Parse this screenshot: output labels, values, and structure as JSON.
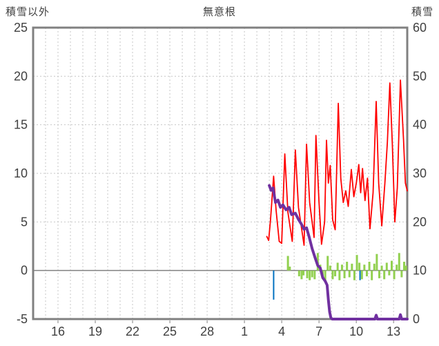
{
  "header": {
    "left_axis_title": "積雪以外",
    "chart_title": "無意根",
    "right_axis_title": "積雪"
  },
  "chart_data": {
    "type": "line",
    "title": "無意根",
    "left_axis": {
      "title": "積雪以外",
      "min": -5,
      "max": 25,
      "ticks": [
        25,
        20,
        15,
        10,
        5,
        0,
        -5
      ]
    },
    "right_axis": {
      "title": "積雪",
      "min": 0,
      "max": 60,
      "ticks": [
        60,
        50,
        40,
        30,
        20,
        10,
        0
      ]
    },
    "x_axis": {
      "tick_labels": [
        "16",
        "19",
        "22",
        "25",
        "28",
        "1",
        "4",
        "7",
        "10",
        "13"
      ],
      "tick_days": [
        16,
        19,
        22,
        25,
        28,
        31,
        34,
        37,
        40,
        43
      ],
      "range_days": [
        14,
        44.1
      ],
      "gridline_every_day": 1
    },
    "zero_line_value": 0,
    "grid": true,
    "legend": "none",
    "colors": {
      "grid": "#c6c6c6",
      "border": "#808080",
      "zero_line": "#808080",
      "text": "#404040",
      "red_series": "#ff0000",
      "purple_series": "#7030a0",
      "green_series": "#92d050",
      "blue_series": "#0070c0"
    },
    "series": [
      {
        "id": "green-bars",
        "type": "bar",
        "axis": "left",
        "color": "#92d050",
        "width": 3,
        "points": [
          [
            34.5,
            1.5
          ],
          [
            34.65,
            0.4
          ],
          [
            35.4,
            -0.6
          ],
          [
            35.6,
            -0.9
          ],
          [
            35.75,
            -0.5
          ],
          [
            36.05,
            -0.8
          ],
          [
            36.25,
            -1.0
          ],
          [
            36.45,
            -0.7
          ],
          [
            36.65,
            -0.9
          ],
          [
            36.9,
            1.8
          ],
          [
            37.1,
            0.6
          ],
          [
            37.3,
            -0.8
          ],
          [
            37.5,
            -1.0
          ],
          [
            37.7,
            1.5
          ],
          [
            37.9,
            0.5
          ],
          [
            38.1,
            -0.9
          ],
          [
            38.3,
            -0.6
          ],
          [
            38.5,
            0.8
          ],
          [
            38.65,
            -1.0
          ],
          [
            38.85,
            0.6
          ],
          [
            39.05,
            -0.8
          ],
          [
            39.25,
            0.9
          ],
          [
            39.45,
            -0.7
          ],
          [
            39.65,
            0.7
          ],
          [
            39.85,
            -1.0
          ],
          [
            40.05,
            1.6
          ],
          [
            40.25,
            0.8
          ],
          [
            40.45,
            -0.9
          ],
          [
            40.65,
            0.6
          ],
          [
            40.85,
            -0.6
          ],
          [
            41.05,
            0.9
          ],
          [
            41.25,
            -1.0
          ],
          [
            41.45,
            0.7
          ],
          [
            41.65,
            1.7
          ],
          [
            41.85,
            -0.8
          ],
          [
            42.05,
            0.5
          ],
          [
            42.25,
            -0.9
          ],
          [
            42.45,
            0.8
          ],
          [
            42.65,
            -0.5
          ],
          [
            42.85,
            1.0
          ],
          [
            43.05,
            -0.9
          ],
          [
            43.25,
            0.6
          ],
          [
            43.45,
            1.8
          ],
          [
            43.65,
            -0.7
          ],
          [
            43.85,
            0.9
          ],
          [
            44.0,
            0.5
          ]
        ]
      },
      {
        "id": "blue-bars",
        "type": "bar",
        "axis": "left",
        "color": "#0070c0",
        "width": 2,
        "points": [
          [
            33.35,
            -3.0
          ],
          [
            40.3,
            -1.0
          ]
        ]
      },
      {
        "id": "red-line",
        "type": "line",
        "axis": "left",
        "color": "#ff0000",
        "width": 1.8,
        "points": [
          [
            32.8,
            3.5
          ],
          [
            32.95,
            3.1
          ],
          [
            33.1,
            5.2
          ],
          [
            33.35,
            9.7
          ],
          [
            33.55,
            6.2
          ],
          [
            33.8,
            3.0
          ],
          [
            34.0,
            2.8
          ],
          [
            34.25,
            12.0
          ],
          [
            34.5,
            6.0
          ],
          [
            34.85,
            3.0
          ],
          [
            35.1,
            12.4
          ],
          [
            35.35,
            6.5
          ],
          [
            35.8,
            2.6
          ],
          [
            36.0,
            13.0
          ],
          [
            36.25,
            7.0
          ],
          [
            36.6,
            3.4
          ],
          [
            36.75,
            13.9
          ],
          [
            37.0,
            7.0
          ],
          [
            37.2,
            2.7
          ],
          [
            37.45,
            5.0
          ],
          [
            37.6,
            13.4
          ],
          [
            37.75,
            9.0
          ],
          [
            37.9,
            10.8
          ],
          [
            38.1,
            5.2
          ],
          [
            38.3,
            4.2
          ],
          [
            38.55,
            17.2
          ],
          [
            38.75,
            9.5
          ],
          [
            38.95,
            7.0
          ],
          [
            39.15,
            8.2
          ],
          [
            39.35,
            6.6
          ],
          [
            39.6,
            10.4
          ],
          [
            39.8,
            7.6
          ],
          [
            40.0,
            9.0
          ],
          [
            40.2,
            10.9
          ],
          [
            40.35,
            8.0
          ],
          [
            40.5,
            10.5
          ],
          [
            40.7,
            7.2
          ],
          [
            40.9,
            9.5
          ],
          [
            41.1,
            4.3
          ],
          [
            41.35,
            8.0
          ],
          [
            41.6,
            17.4
          ],
          [
            41.8,
            9.0
          ],
          [
            42.05,
            4.6
          ],
          [
            42.3,
            9.0
          ],
          [
            42.5,
            13.2
          ],
          [
            42.7,
            19.3
          ],
          [
            42.9,
            13.0
          ],
          [
            43.1,
            5.0
          ],
          [
            43.3,
            8.5
          ],
          [
            43.55,
            19.6
          ],
          [
            43.8,
            13.5
          ],
          [
            43.95,
            9.0
          ],
          [
            44.1,
            8.2
          ]
        ]
      },
      {
        "id": "purple-line",
        "type": "line",
        "axis": "right",
        "color": "#7030a0",
        "width": 4,
        "points": [
          [
            33.0,
            27.5
          ],
          [
            33.15,
            26.5
          ],
          [
            33.3,
            27.0
          ],
          [
            33.5,
            24.0
          ],
          [
            33.7,
            24.5
          ],
          [
            33.9,
            23.0
          ],
          [
            34.1,
            23.5
          ],
          [
            34.35,
            22.5
          ],
          [
            34.6,
            23.0
          ],
          [
            34.8,
            21.5
          ],
          [
            35.1,
            21.8
          ],
          [
            35.35,
            20.5
          ],
          [
            35.6,
            19.5
          ],
          [
            35.8,
            18.5
          ],
          [
            36.0,
            18.8
          ],
          [
            36.2,
            17.0
          ],
          [
            36.45,
            14.5
          ],
          [
            36.7,
            12.5
          ],
          [
            36.9,
            11.0
          ],
          [
            37.1,
            10.5
          ],
          [
            37.3,
            8.5
          ],
          [
            37.5,
            7.8
          ],
          [
            37.65,
            7.0
          ],
          [
            37.75,
            4.0
          ],
          [
            37.85,
            1.5
          ],
          [
            37.95,
            0.3
          ],
          [
            38.05,
            0
          ],
          [
            41.5,
            0
          ],
          [
            41.6,
            0.8
          ],
          [
            41.7,
            0
          ],
          [
            43.45,
            0
          ],
          [
            43.55,
            0.9
          ],
          [
            43.65,
            0
          ],
          [
            44.1,
            0
          ]
        ]
      }
    ]
  }
}
